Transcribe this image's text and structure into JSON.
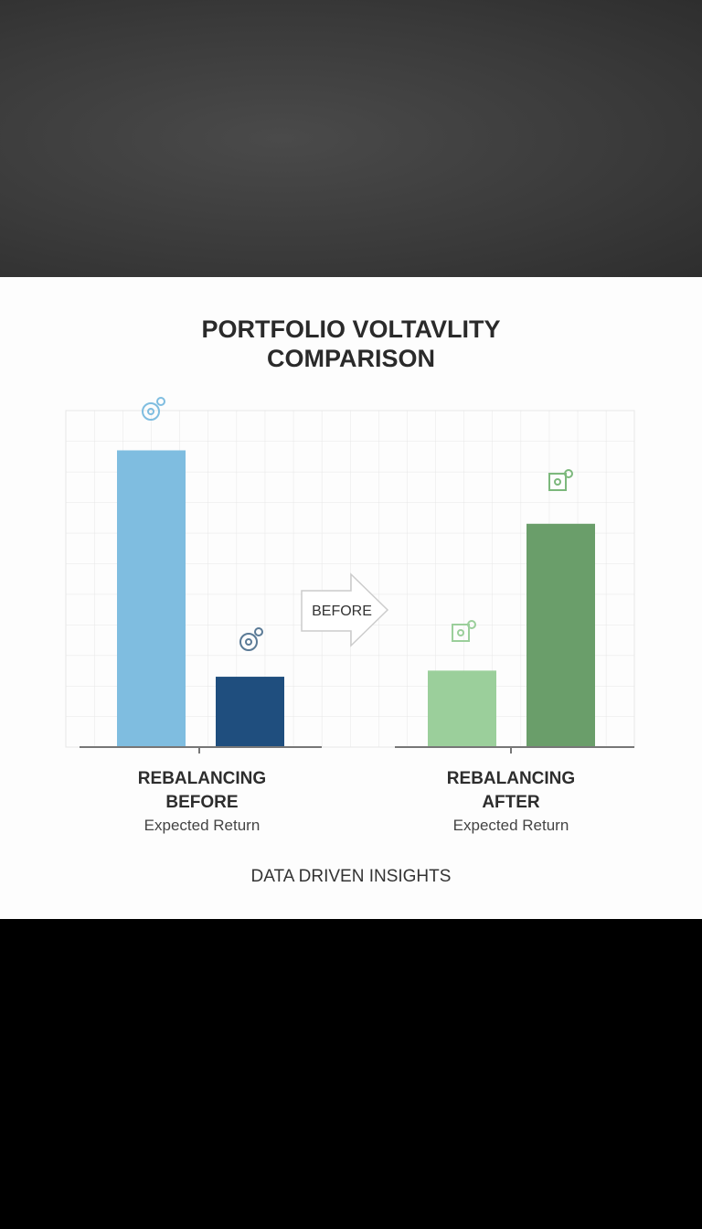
{
  "chart_data": {
    "type": "bar",
    "title": "PORTFOLIO VOLTAVLITY COMPARISON",
    "groups": [
      {
        "label": "REBALANCING BEFORE",
        "sublabel": "Expected Return",
        "values": [
          9.7,
          2.3
        ],
        "colors": [
          "#7fbde0",
          "#1f4e7e"
        ]
      },
      {
        "label": "REBALANCING AFTER",
        "sublabel": "Expected Return",
        "values": [
          2.5,
          7.3
        ],
        "colors": [
          "#9bcf9b",
          "#6a9e6a"
        ]
      }
    ],
    "arrow_label": "BEFORE",
    "footer": "DATA DRIVEN INSIGHTS",
    "ylim": [
      0,
      11
    ],
    "grid": true
  }
}
